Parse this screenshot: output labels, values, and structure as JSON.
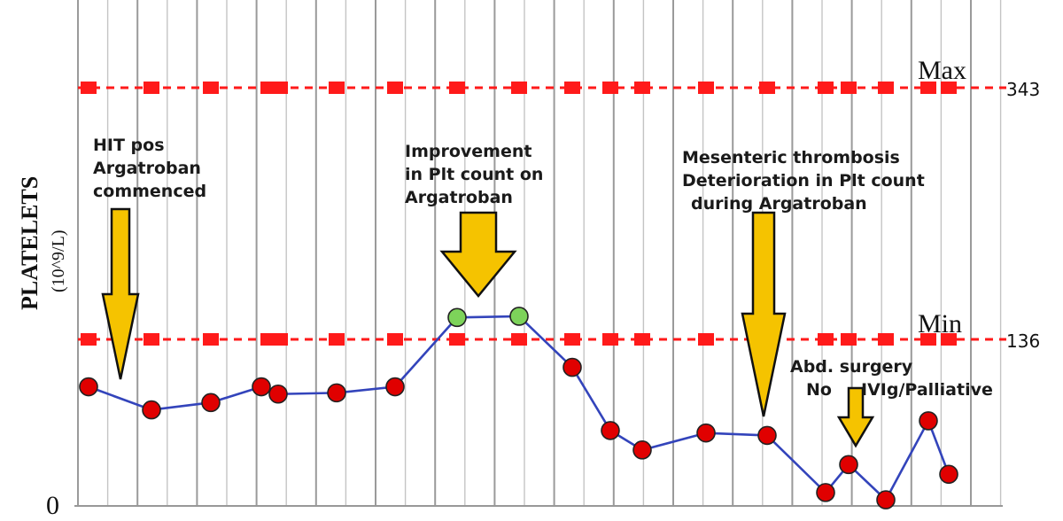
{
  "chart_data": {
    "type": "line",
    "ylabel": "PLATELETS",
    "ylabel_unit": "(10^9/L)",
    "y_zero_label": "0",
    "ylim": [
      0,
      400
    ],
    "reference_lines": [
      {
        "name": "Max",
        "value": 343,
        "value_label": "343",
        "color": "#ff1a1a"
      },
      {
        "name": "Min",
        "value": 136,
        "value_label": "136",
        "color": "#ff1a1a"
      }
    ],
    "series": [
      {
        "line_color": "#3344bb",
        "values": [
          97,
          78,
          84,
          97,
          91,
          92,
          97,
          154,
          155,
          113,
          61,
          45,
          59,
          57,
          10,
          33,
          4,
          69,
          25
        ],
        "point_colors": [
          "#e00000",
          "#e00000",
          "#e00000",
          "#e00000",
          "#e00000",
          "#e00000",
          "#e00000",
          "#7dd35a",
          "#7dd35a",
          "#e00000",
          "#e00000",
          "#e00000",
          "#e00000",
          "#e00000",
          "#e00000",
          "#e00000",
          "#e00000",
          "#e00000",
          "#e00000"
        ]
      }
    ],
    "annotations": [
      {
        "lines": [
          "HIT pos",
          "Argatroban",
          "commenced"
        ],
        "arrow_to_point": 1
      },
      {
        "lines": [
          "Improvement",
          "in Plt count on",
          "Argatroban"
        ],
        "arrow_to_point": 7
      },
      {
        "lines": [
          "Mesenteric thrombosis",
          "Deterioration in Plt count",
          "during Argatroban"
        ],
        "arrow_to_point": 13
      },
      {
        "lines": [
          "Abd. surgery",
          "No     IVIg/Palliative"
        ],
        "arrow_to_point": 15
      }
    ],
    "grid": "vertical",
    "arrow_color": "#f5c300"
  }
}
